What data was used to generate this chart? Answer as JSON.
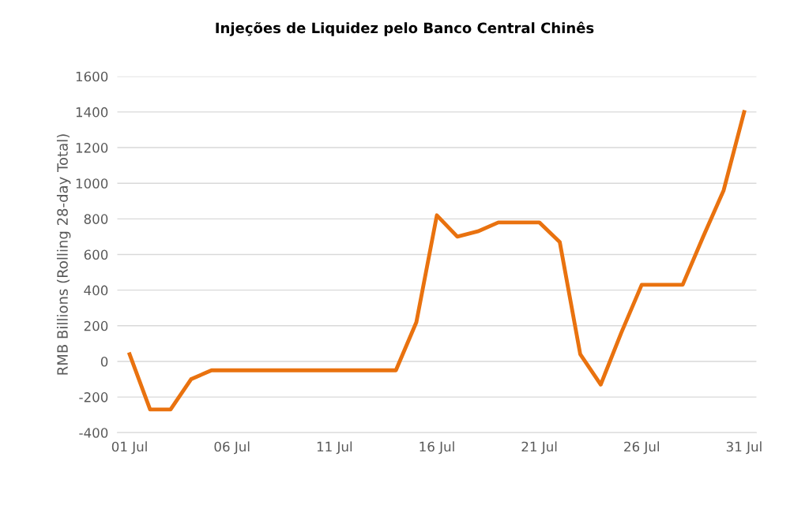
{
  "chart_data": {
    "type": "line",
    "title": "Injeções de Liquidez pelo Banco Central Chinês",
    "ylabel": "RMB Billions (Rolling 28-day Total)",
    "categories": [
      "01 Jul",
      null,
      null,
      null,
      null,
      "06 Jul",
      null,
      null,
      null,
      null,
      "11 Jul",
      null,
      null,
      null,
      null,
      "16 Jul",
      null,
      null,
      null,
      null,
      "21 Jul",
      null,
      null,
      null,
      null,
      "26 Jul",
      null,
      null,
      null,
      null,
      "31 Jul"
    ],
    "series": [
      {
        "color": "#e9720f",
        "values": [
          40,
          -270,
          -270,
          -100,
          -50,
          -50,
          -50,
          -50,
          -50,
          -50,
          -50,
          -50,
          -50,
          -50,
          220,
          820,
          700,
          730,
          780,
          780,
          780,
          670,
          40,
          -130,
          160,
          430,
          430,
          430,
          700,
          960,
          1400
        ]
      }
    ],
    "ylim": [
      -400,
      1600
    ],
    "yticks": [
      -400,
      -200,
      0,
      200,
      400,
      600,
      800,
      1000,
      1200,
      1400,
      1600
    ],
    "grid": "y",
    "marker": "none",
    "line_style": "solid"
  }
}
